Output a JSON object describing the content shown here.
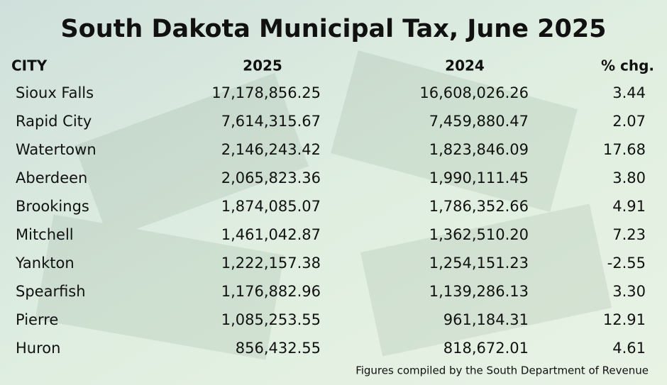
{
  "title": "South Dakota Municipal Tax, June 2025",
  "table": {
    "header": [
      "CITY",
      "2025",
      "2024",
      "% chg."
    ],
    "rows": [
      [
        "Sioux Falls",
        "17,178,856.25",
        "16,608,026.26",
        "3.44"
      ],
      [
        "Rapid City",
        "7,614,315.67",
        "7,459,880.47",
        "2.07"
      ],
      [
        "Watertown",
        "2,146,243.42",
        "1,823,846.09",
        "17.68"
      ],
      [
        "Aberdeen",
        "2,065,823.36",
        "1,990,111.45",
        "3.80"
      ],
      [
        "Brookings",
        "1,874,085.07",
        "1,786,352.66",
        "4.91"
      ],
      [
        "Mitchell",
        "1,461,042.87",
        "1,362,510.20",
        "7.23"
      ],
      [
        "Yankton",
        "1,222,157.38",
        "1,254,151.23",
        "-2.55"
      ],
      [
        "Spearfish",
        "1,176,882.96",
        "1,139,286.13",
        "3.30"
      ],
      [
        "Pierre",
        "1,085,253.55",
        "961,184.31",
        "12.91"
      ],
      [
        "Huron",
        "856,432.55",
        "818,672.01",
        "4.61"
      ]
    ]
  },
  "footer": "Figures compiled by the South Department of Revenue"
}
